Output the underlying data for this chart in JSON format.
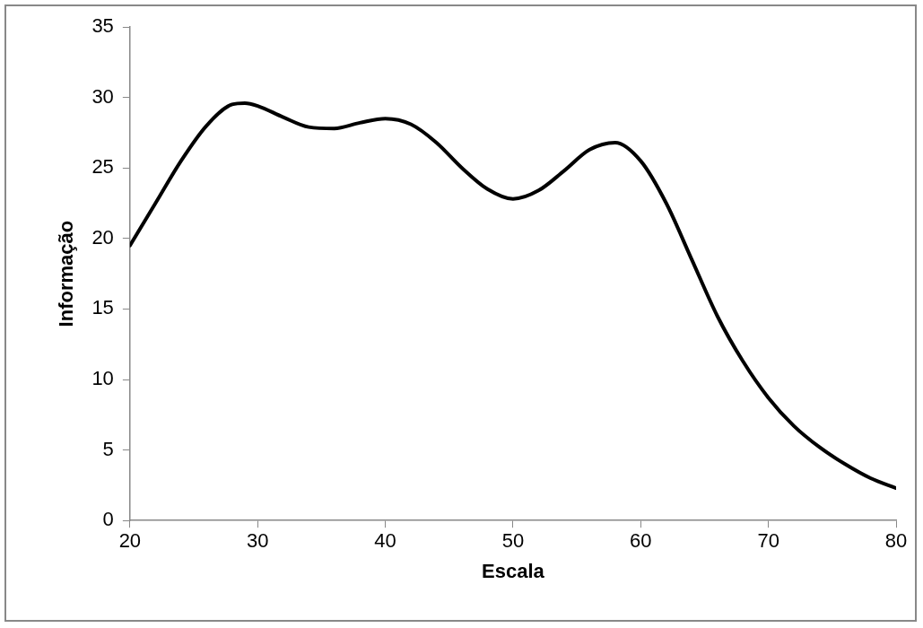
{
  "chart_data": {
    "type": "line",
    "xlabel": "Escala",
    "ylabel": "Informação",
    "xlim": [
      20,
      80
    ],
    "xticks": [
      20,
      30,
      40,
      50,
      60,
      70,
      80
    ],
    "ylim": [
      0,
      35
    ],
    "yticks": [
      0,
      5,
      10,
      15,
      20,
      25,
      30,
      35
    ],
    "grid": false,
    "legend": false,
    "marker": "none",
    "line_style": "solid",
    "series": [
      {
        "color": "#000000",
        "x": [
          20,
          22,
          24,
          26,
          28,
          29,
          30,
          32,
          34,
          36,
          38,
          40,
          42,
          44,
          46,
          48,
          50,
          52,
          54,
          56,
          58,
          60,
          62,
          64,
          66,
          68,
          70,
          72,
          74,
          76,
          78,
          80
        ],
        "values": [
          19.5,
          22.5,
          25.5,
          28.0,
          29.5,
          29.6,
          29.4,
          28.6,
          27.9,
          27.8,
          28.2,
          28.5,
          28.1,
          26.8,
          25.0,
          23.5,
          22.8,
          23.4,
          24.8,
          26.3,
          26.8,
          25.5,
          22.5,
          18.5,
          14.5,
          11.3,
          8.7,
          6.7,
          5.2,
          4.0,
          3.0,
          2.3
        ]
      }
    ]
  }
}
